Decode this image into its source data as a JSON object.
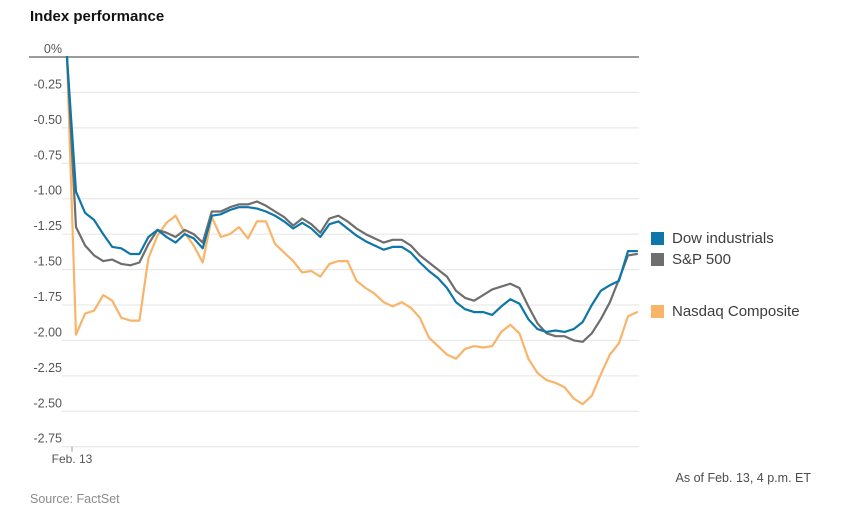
{
  "page": {
    "title": "Index performance"
  },
  "chart_data": {
    "type": "line",
    "title": "Index performance",
    "xlabel": "Feb. 13",
    "ylabel": "",
    "ylim": [
      -2.75,
      0
    ],
    "ytick_step": 0.25,
    "yticks": [
      "0%",
      "-0.25",
      "-0.50",
      "-0.75",
      "-1.00",
      "-1.25",
      "-1.50",
      "-1.75",
      "-2.00",
      "-2.25",
      "-2.50",
      "-2.75"
    ],
    "grid": true,
    "legend_position": "right",
    "x_unit": "intraday (Feb. 13 trading session, % change)",
    "series": [
      {
        "name": "Dow industrials",
        "color": "#0e76a8",
        "values": [
          0,
          -0.95,
          -1.1,
          -1.15,
          -1.25,
          -1.34,
          -1.35,
          -1.39,
          -1.39,
          -1.27,
          -1.22,
          -1.27,
          -1.31,
          -1.25,
          -1.28,
          -1.35,
          -1.12,
          -1.11,
          -1.08,
          -1.06,
          -1.06,
          -1.07,
          -1.09,
          -1.12,
          -1.16,
          -1.21,
          -1.17,
          -1.21,
          -1.27,
          -1.18,
          -1.16,
          -1.21,
          -1.26,
          -1.3,
          -1.33,
          -1.36,
          -1.34,
          -1.34,
          -1.38,
          -1.45,
          -1.51,
          -1.56,
          -1.63,
          -1.73,
          -1.78,
          -1.8,
          -1.8,
          -1.82,
          -1.76,
          -1.71,
          -1.74,
          -1.85,
          -1.92,
          -1.94,
          -1.93,
          -1.94,
          -1.92,
          -1.87,
          -1.75,
          -1.65,
          -1.61,
          -1.58,
          -1.37,
          -1.37
        ]
      },
      {
        "name": "S&P 500",
        "color": "#6e6e6e",
        "values": [
          0,
          -1.2,
          -1.33,
          -1.4,
          -1.44,
          -1.43,
          -1.46,
          -1.47,
          -1.45,
          -1.32,
          -1.22,
          -1.24,
          -1.27,
          -1.22,
          -1.25,
          -1.31,
          -1.09,
          -1.09,
          -1.06,
          -1.04,
          -1.04,
          -1.02,
          -1.05,
          -1.09,
          -1.13,
          -1.19,
          -1.14,
          -1.18,
          -1.24,
          -1.14,
          -1.12,
          -1.16,
          -1.21,
          -1.25,
          -1.28,
          -1.31,
          -1.29,
          -1.29,
          -1.33,
          -1.4,
          -1.45,
          -1.5,
          -1.55,
          -1.65,
          -1.7,
          -1.72,
          -1.68,
          -1.64,
          -1.62,
          -1.6,
          -1.63,
          -1.76,
          -1.88,
          -1.95,
          -1.97,
          -1.97,
          -2.0,
          -2.01,
          -1.95,
          -1.85,
          -1.73,
          -1.57,
          -1.4,
          -1.39
        ]
      },
      {
        "name": "Nasdaq Composite",
        "color": "#f9b46a",
        "values": [
          0,
          -1.96,
          -1.81,
          -1.79,
          -1.68,
          -1.72,
          -1.84,
          -1.86,
          -1.86,
          -1.42,
          -1.26,
          -1.17,
          -1.12,
          -1.24,
          -1.33,
          -1.45,
          -1.13,
          -1.27,
          -1.25,
          -1.2,
          -1.28,
          -1.16,
          -1.16,
          -1.32,
          -1.38,
          -1.44,
          -1.52,
          -1.51,
          -1.55,
          -1.46,
          -1.44,
          -1.44,
          -1.58,
          -1.63,
          -1.67,
          -1.73,
          -1.76,
          -1.73,
          -1.77,
          -1.84,
          -1.98,
          -2.04,
          -2.1,
          -2.13,
          -2.06,
          -2.04,
          -2.05,
          -2.04,
          -1.94,
          -1.89,
          -1.95,
          -2.13,
          -2.23,
          -2.28,
          -2.3,
          -2.33,
          -2.41,
          -2.45,
          -2.39,
          -2.24,
          -2.1,
          -2.02,
          -1.83,
          -1.8
        ]
      }
    ]
  },
  "footer": {
    "source": "Source: FactSet",
    "as_of": "As of Feb. 13, 4 p.m. ET"
  },
  "colors": {
    "grid": "#e4e4e4",
    "zero_line": "#9b9b9b",
    "axis_text": "#555555",
    "tick": "#999999"
  }
}
